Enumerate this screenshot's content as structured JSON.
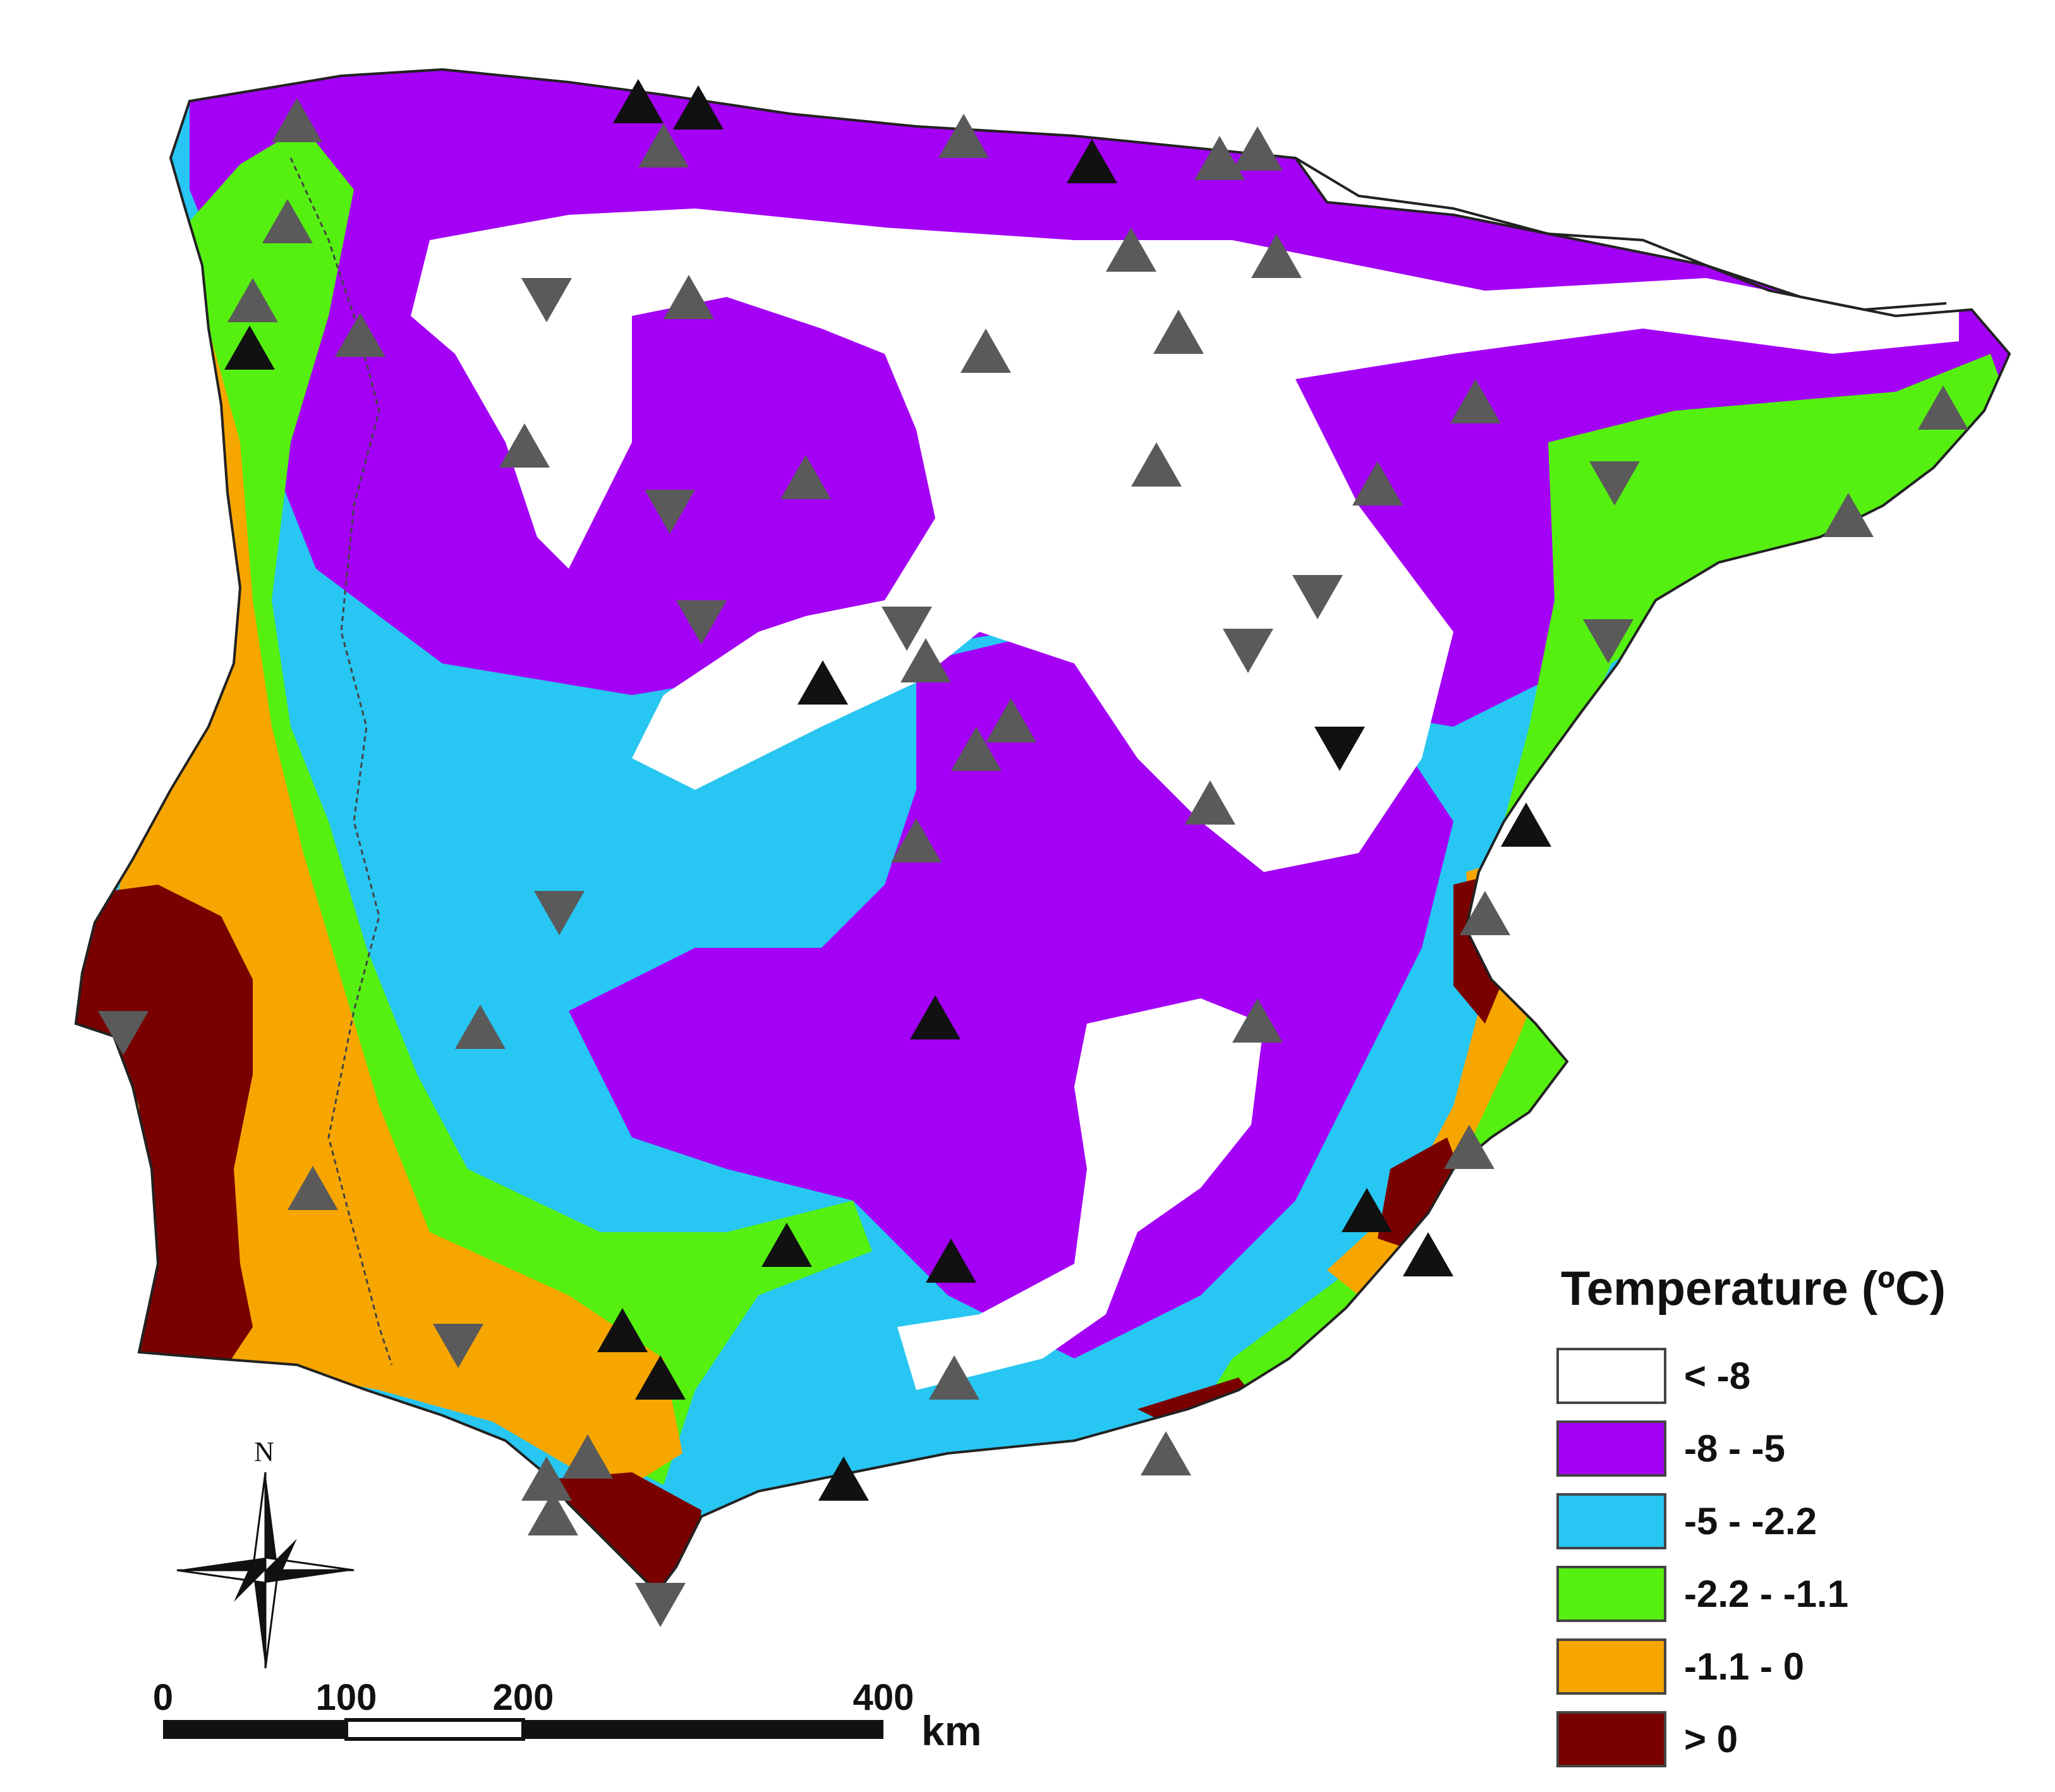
{
  "legend": {
    "title": "Temperature (ºC)",
    "items": [
      {
        "label": "< -8",
        "color": "#ffffff"
      },
      {
        "label": "-8 - -5",
        "color": "#a400f6"
      },
      {
        "label": "-5 - -2.2",
        "color": "#28c6f2"
      },
      {
        "label": "-2.2 - -1.1",
        "color": "#55f010"
      },
      {
        "label": "-1.1 - 0",
        "color": "#f7a600"
      },
      {
        "label": "> 0",
        "color": "#7a0000"
      }
    ]
  },
  "scale_bar": {
    "ticks": [
      "0",
      "100",
      "200",
      "400"
    ],
    "unit": "km"
  },
  "north_arrow": {
    "label": "N"
  },
  "colors": {
    "station_black": "#111111",
    "station_gray": "#5a5a5a",
    "border": "#222222"
  },
  "icons": {
    "station_up": "triangle-up-icon",
    "station_down": "triangle-down-icon",
    "north": "compass-rose-icon"
  }
}
